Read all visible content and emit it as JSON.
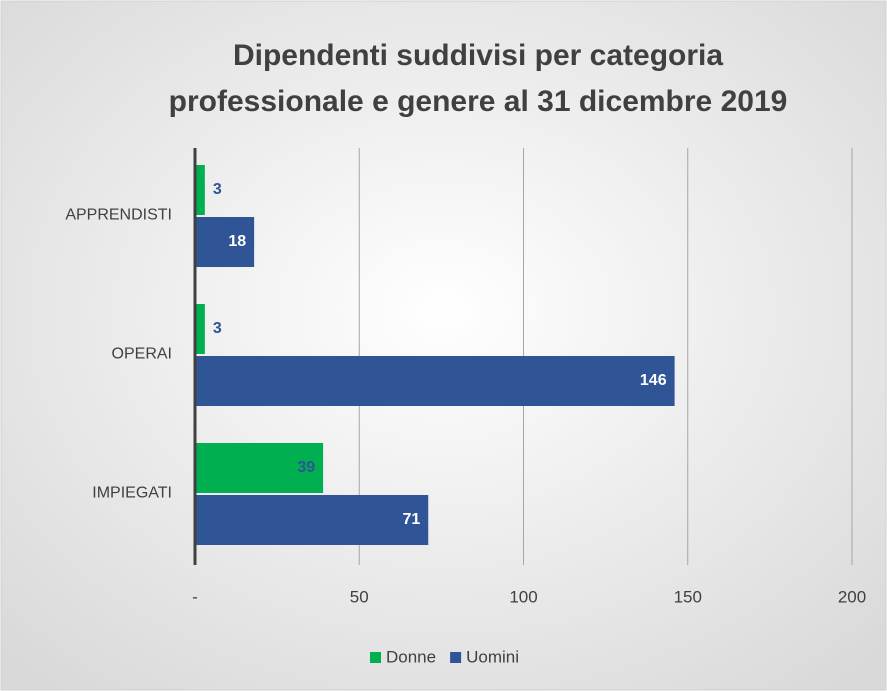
{
  "chart_data": {
    "type": "hbar",
    "title": [
      "Dipendenti suddivisi per categoria",
      "professionale e genere al 31 dicembre 2019"
    ],
    "categories": [
      "APPRENDISTI",
      "OPERAI",
      "IMPIEGATI"
    ],
    "series": [
      {
        "name": "Donne",
        "color": "#00b050",
        "values": [
          3,
          3,
          39
        ]
      },
      {
        "name": "Uomini",
        "color": "#2f5597",
        "values": [
          18,
          146,
          71
        ]
      }
    ],
    "xlim": [
      0,
      200
    ],
    "xticks": [
      {
        "value": 0,
        "label": "-"
      },
      50,
      100,
      150,
      200
    ],
    "grid": true,
    "legend": "bottom"
  }
}
